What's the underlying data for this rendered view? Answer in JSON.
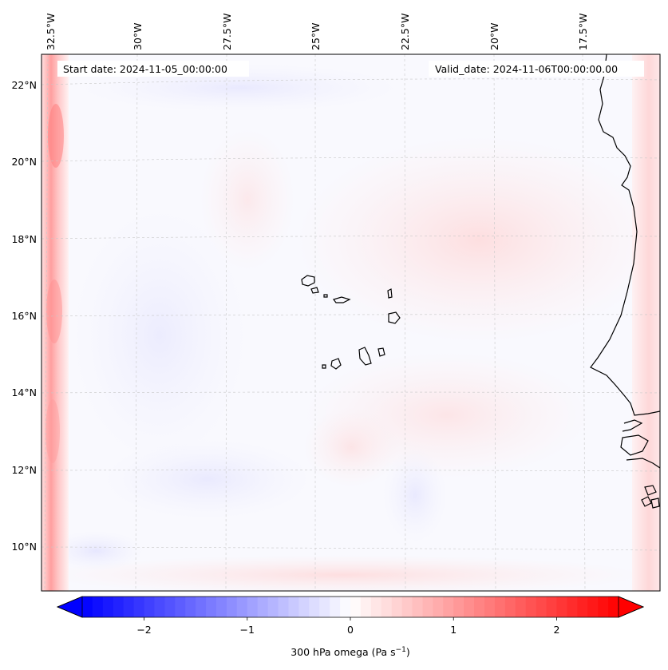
{
  "map": {
    "start_label": "Start date: 2024-11-05_00:00:00",
    "valid_label": "Valid_date: 2024-11-06T00:00:00.00",
    "lon_labels": [
      "32.5°W",
      "30°W",
      "27.5°W",
      "25°W",
      "22.5°W",
      "20°W",
      "17.5°W"
    ],
    "lat_labels": [
      "22°N",
      "20°N",
      "18°N",
      "16°N",
      "14°N",
      "12°N",
      "10°N"
    ],
    "field": "300 hPa omega",
    "gridlines": true,
    "coastline_color": "#000000"
  },
  "colorbar": {
    "label": "300 hPa omega (Pa s$^{-1}$)",
    "label_main": "300 hPa omega (Pa s",
    "label_sup": "−1",
    "label_end": ")",
    "ticks": [
      "−2",
      "−1",
      "0",
      "1",
      "2"
    ],
    "tick_values": [
      -2,
      -1,
      0,
      1,
      2
    ],
    "range": [
      -2.6,
      2.6
    ],
    "extend": "both",
    "colormap": "bwr",
    "low_color": "#0000ff",
    "mid_color": "#ffffff",
    "high_color": "#ff0000"
  }
}
